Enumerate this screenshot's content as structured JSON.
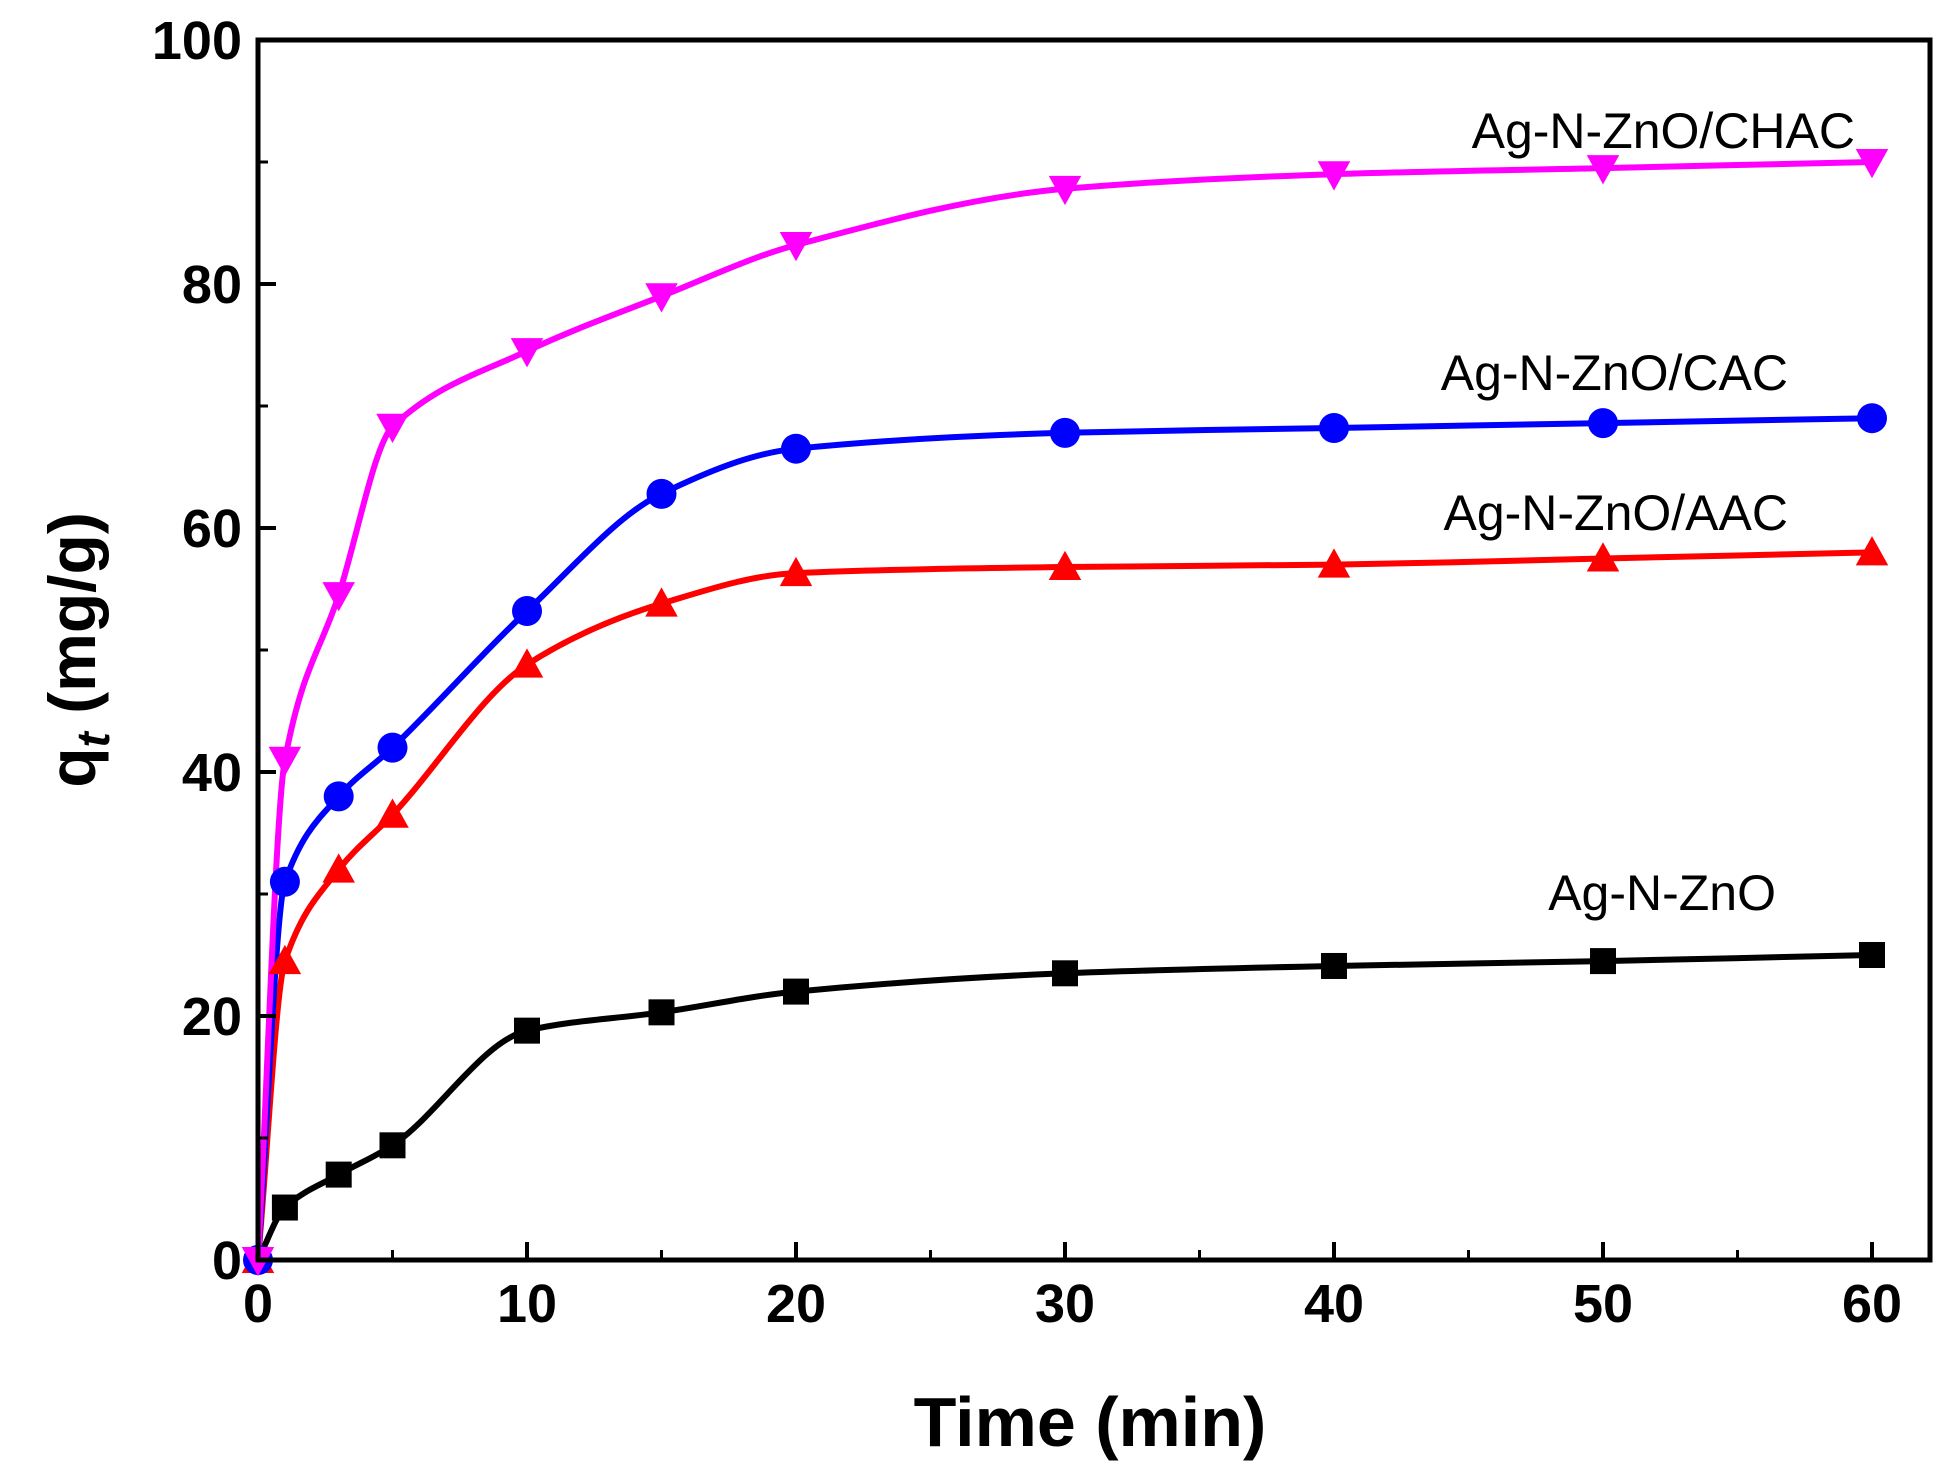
{
  "chart_data": {
    "type": "line",
    "title": "",
    "xlabel": "Time (min)",
    "ylabel_main": "q",
    "ylabel_sub": "t",
    "ylabel_unit": " (mg/g)",
    "xlim": [
      0,
      60
    ],
    "ylim": [
      0,
      100
    ],
    "xticks": [
      0,
      10,
      20,
      30,
      40,
      50,
      60
    ],
    "yticks": [
      0,
      20,
      40,
      60,
      80,
      100
    ],
    "grid": false,
    "x": [
      0,
      1,
      3,
      5,
      10,
      15,
      20,
      30,
      40,
      50,
      60
    ],
    "series": [
      {
        "name": "Ag-N-ZnO",
        "color": "#000000",
        "marker": "square",
        "values": [
          0,
          4.3,
          7.0,
          9.4,
          18.8,
          20.3,
          22.0,
          23.5,
          24.1,
          24.5,
          25.0
        ]
      },
      {
        "name": "Ag-N-ZnO/AAC",
        "color": "#ff0000",
        "marker": "triangle-up",
        "values": [
          0,
          24.5,
          32.0,
          36.5,
          48.8,
          53.8,
          56.3,
          56.8,
          57.0,
          57.5,
          58.0
        ]
      },
      {
        "name": "Ag-N-ZnO/CAC",
        "color": "#0000ff",
        "marker": "circle",
        "values": [
          0,
          31.0,
          38.0,
          42.0,
          53.2,
          62.8,
          66.5,
          67.8,
          68.2,
          68.6,
          69.0
        ]
      },
      {
        "name": "Ag-N-ZnO/CHAC",
        "color": "#ff00ff",
        "marker": "triangle-down",
        "values": [
          0,
          41.0,
          54.5,
          68.3,
          74.5,
          79.0,
          83.2,
          87.8,
          89.0,
          89.5,
          90.0
        ]
      }
    ]
  }
}
